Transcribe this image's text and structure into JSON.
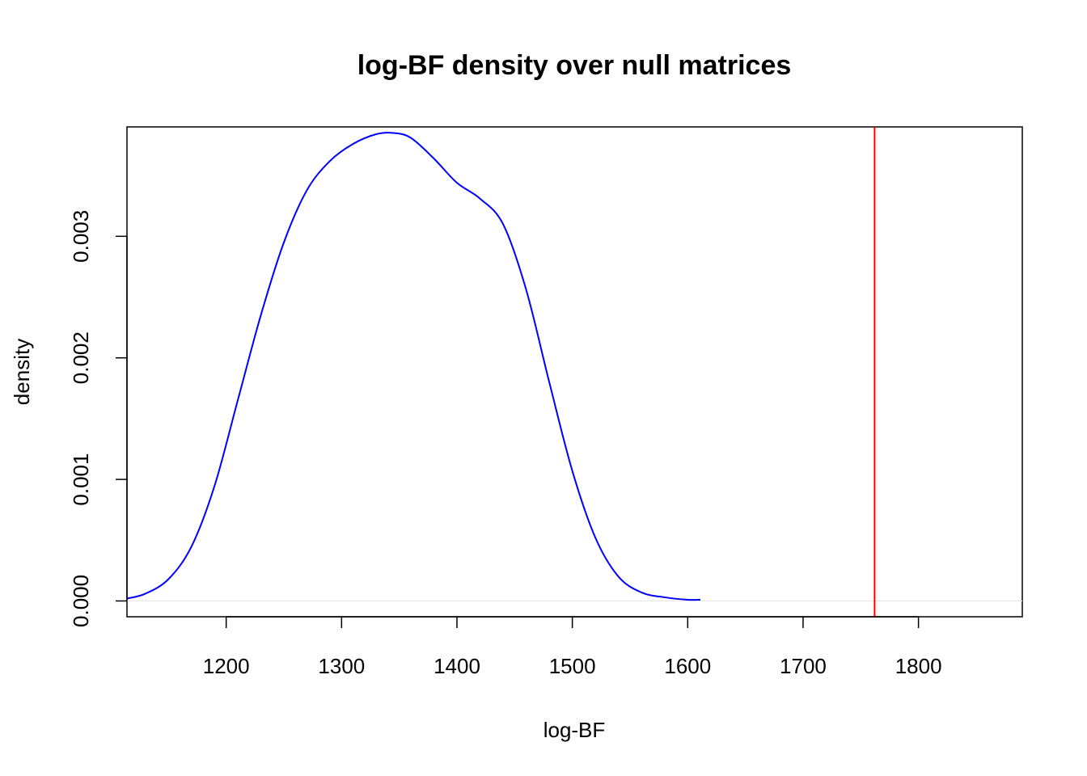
{
  "chart_data": {
    "type": "line",
    "title": "log-BF density over null matrices",
    "xlabel": "log-BF",
    "ylabel": "density",
    "xlim": [
      1114,
      1890
    ],
    "ylim": [
      -0.00013,
      0.0039
    ],
    "x_ticks": [
      1200,
      1300,
      1400,
      1500,
      1600,
      1700,
      1800
    ],
    "x_tick_labels": [
      "1200",
      "1300",
      "1400",
      "1500",
      "1600",
      "1700",
      "1800"
    ],
    "y_ticks": [
      0,
      0.001,
      0.002,
      0.003
    ],
    "y_tick_labels": [
      "0.000",
      "0.001",
      "0.002",
      "0.003"
    ],
    "grid": false,
    "legend": "none",
    "series": [
      {
        "color": "#0000ff",
        "x": [
          1114,
          1130,
          1150,
          1170,
          1190,
          1210,
          1230,
          1250,
          1270,
          1290,
          1310,
          1330,
          1345,
          1360,
          1380,
          1400,
          1420,
          1440,
          1460,
          1480,
          1500,
          1520,
          1540,
          1560,
          1580,
          1600,
          1611
        ],
        "y": [
          2e-05,
          6e-05,
          0.00018,
          0.00045,
          0.00095,
          0.00165,
          0.00235,
          0.00295,
          0.00338,
          0.00362,
          0.00376,
          0.00384,
          0.00385,
          0.00381,
          0.00364,
          0.00344,
          0.00331,
          0.0031,
          0.00256,
          0.0018,
          0.00107,
          0.00052,
          0.0002,
          7e-05,
          3e-05,
          1e-05,
          1e-05
        ]
      }
    ],
    "baseline": {
      "y": 0,
      "color": "#e6e6e6"
    },
    "vline": {
      "x": 1762,
      "color": "#ff0000"
    }
  }
}
